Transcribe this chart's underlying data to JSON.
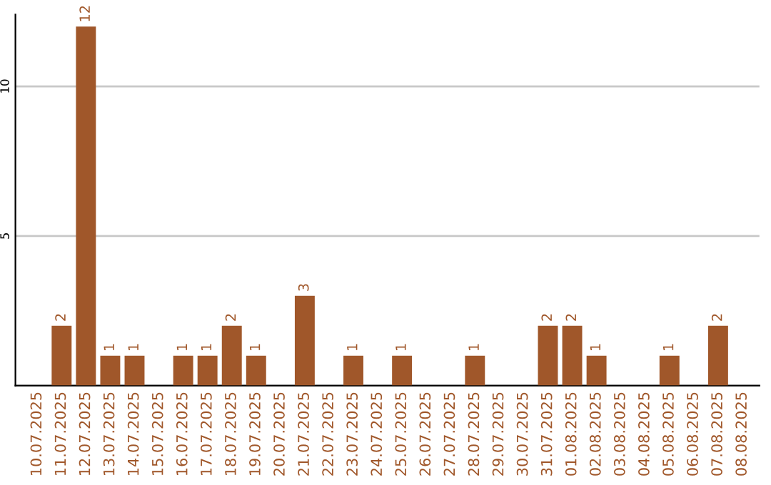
{
  "chart_data": {
    "type": "bar",
    "categories": [
      "10.07.2025",
      "11.07.2025",
      "12.07.2025",
      "13.07.2025",
      "14.07.2025",
      "15.07.2025",
      "16.07.2025",
      "17.07.2025",
      "18.07.2025",
      "19.07.2025",
      "20.07.2025",
      "21.07.2025",
      "22.07.2025",
      "23.07.2025",
      "24.07.2025",
      "25.07.2025",
      "26.07.2025",
      "27.07.2025",
      "28.07.2025",
      "29.07.2025",
      "30.07.2025",
      "31.07.2025",
      "01.08.2025",
      "02.08.2025",
      "03.08.2025",
      "04.08.2025",
      "05.08.2025",
      "06.08.2025",
      "07.08.2025",
      "08.08.2025"
    ],
    "values": [
      0,
      2,
      12,
      1,
      1,
      0,
      1,
      1,
      2,
      1,
      0,
      3,
      0,
      1,
      0,
      1,
      0,
      0,
      1,
      0,
      0,
      2,
      2,
      1,
      0,
      0,
      1,
      0,
      2,
      0
    ],
    "value_labels": [
      null,
      "2",
      "12",
      "1",
      "1",
      null,
      "1",
      "1",
      "2",
      "1",
      null,
      "3",
      null,
      "1",
      null,
      "1",
      null,
      null,
      "1",
      null,
      null,
      "2",
      "2",
      "1",
      null,
      null,
      "1",
      null,
      "2",
      null
    ],
    "color": "#a0572a",
    "ylim": [
      0,
      12.4
    ],
    "yticks": [
      5,
      10
    ],
    "grid": "y"
  }
}
